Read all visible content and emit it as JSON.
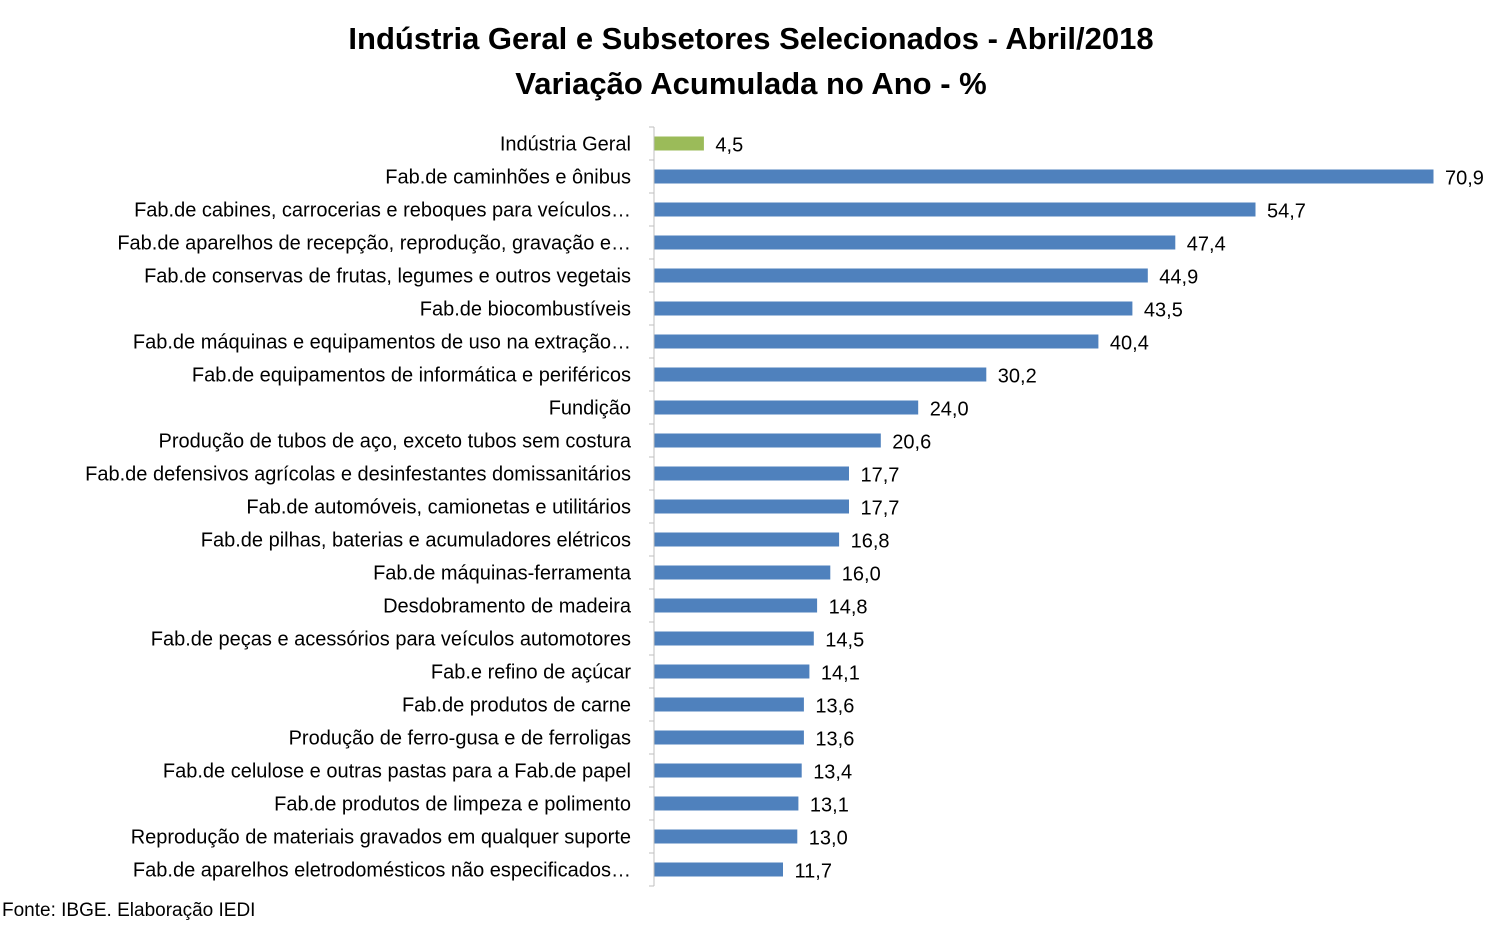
{
  "chart_data": {
    "type": "bar",
    "orientation": "horizontal",
    "title": "Indústria Geral e Subsetores Selecionados - Abril/2018",
    "subtitle": "Variação Acumulada no Ano - %",
    "categories": [
      "Indústria Geral",
      "Fab.de caminhões e ônibus",
      "Fab.de cabines, carrocerias e reboques para veículos…",
      "Fab.de aparelhos de recepção, reprodução, gravação e…",
      "Fab.de conservas de frutas, legumes e outros vegetais",
      "Fab.de biocombustíveis",
      "Fab.de máquinas e equipamentos de uso na extração…",
      "Fab.de equipamentos de informática e periféricos",
      "Fundição",
      "Produção de tubos de aço, exceto tubos sem costura",
      "Fab.de defensivos agrícolas e desinfestantes domissanitários",
      "Fab.de automóveis, camionetas e utilitários",
      "Fab.de pilhas, baterias e acumuladores elétricos",
      "Fab.de máquinas-ferramenta",
      "Desdobramento de madeira",
      "Fab.de peças e acessórios para veículos automotores",
      "Fab.e refino de açúcar",
      "Fab.de produtos de carne",
      "Produção de ferro-gusa e de ferroligas",
      "Fab.de celulose e outras pastas para a Fab.de papel",
      "Fab.de produtos de limpeza e polimento",
      "Reprodução de materiais gravados em qualquer suporte",
      "Fab.de aparelhos eletrodomésticos não especificados…"
    ],
    "values": [
      4.5,
      70.9,
      54.7,
      47.4,
      44.9,
      43.5,
      40.4,
      30.2,
      24.0,
      20.6,
      17.7,
      17.7,
      16.8,
      16.0,
      14.8,
      14.5,
      14.1,
      13.6,
      13.6,
      13.4,
      13.1,
      13.0,
      11.7
    ],
    "value_labels": [
      "4,5",
      "70,9",
      "54,7",
      "47,4",
      "44,9",
      "43,5",
      "40,4",
      "30,2",
      "24,0",
      "20,6",
      "17,7",
      "17,7",
      "16,8",
      "16,0",
      "14,8",
      "14,5",
      "14,1",
      "13,6",
      "13,6",
      "13,4",
      "13,1",
      "13,0",
      "11,7"
    ],
    "xlim": [
      0,
      77
    ],
    "highlight_index": 0,
    "colors": {
      "highlight": "#9BBB59",
      "bars": "#4F81BD",
      "axis": "#BFBFBF"
    },
    "grid": false,
    "legend": "none"
  },
  "source": "Fonte: IBGE. Elaboração IEDI"
}
